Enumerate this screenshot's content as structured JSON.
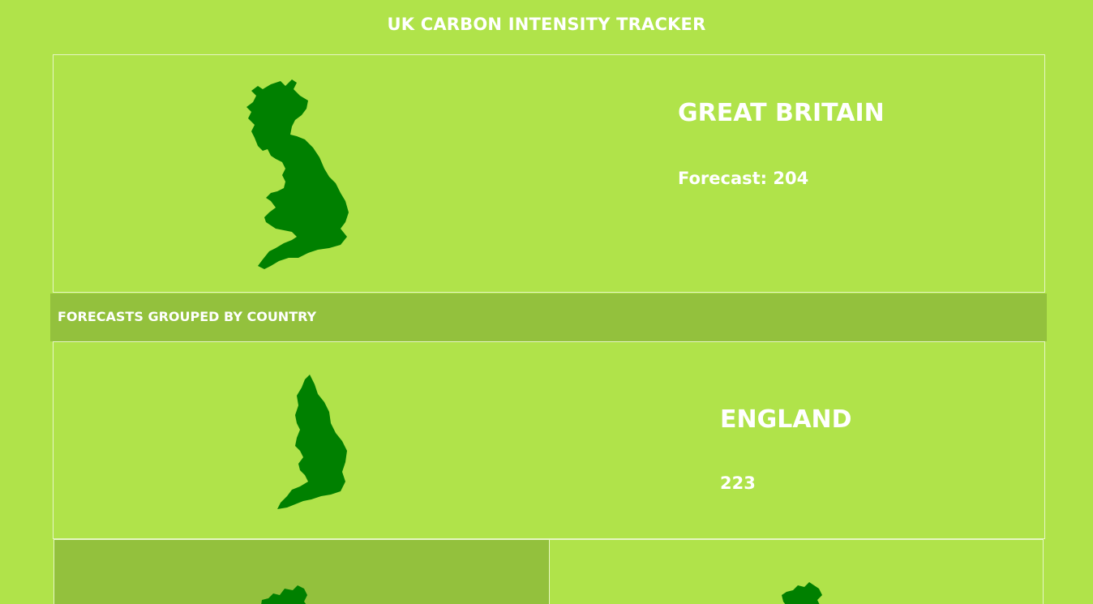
{
  "app": {
    "title": "UK CARBON INTENSITY TRACKER"
  },
  "great_britain": {
    "name": "GREAT BRITAIN",
    "forecast_label": "Forecast: 204",
    "map_icon": "great-britain-map-icon"
  },
  "section": {
    "title": "FORECASTS GROUPED BY COUNTRY"
  },
  "england": {
    "name": "ENGLAND",
    "forecast": "223",
    "map_icon": "england-map-icon"
  },
  "scotland": {
    "map_icon": "scotland-map-icon"
  },
  "wales": {
    "map_icon": "wales-map-icon"
  },
  "colors": {
    "background": "#b0e34a",
    "section_bar": "#93c13d",
    "map_fill": "#008000",
    "text": "#ffffff"
  }
}
